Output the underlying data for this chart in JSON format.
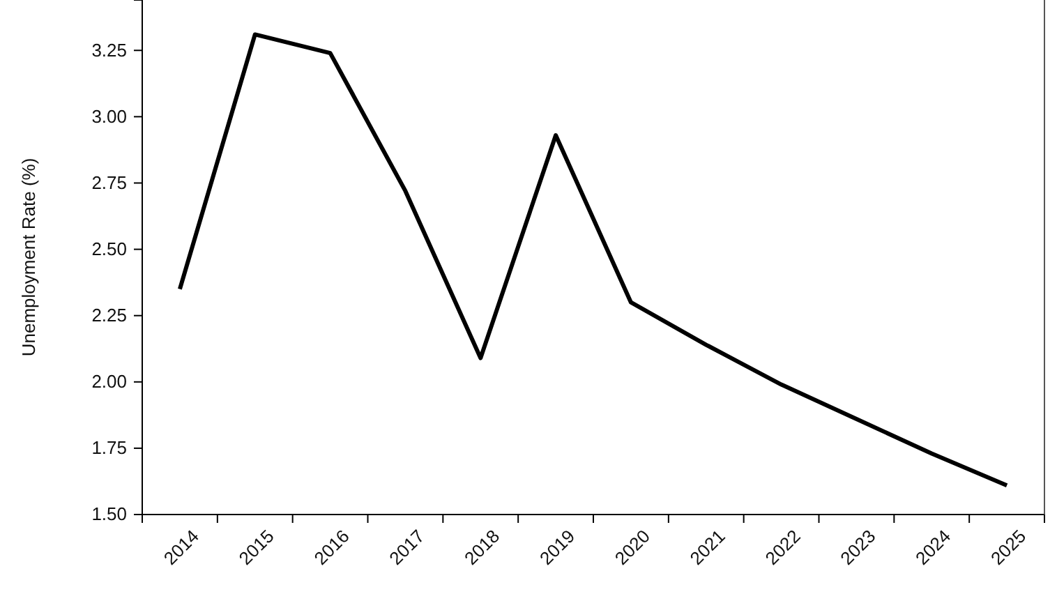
{
  "chart_data": {
    "type": "line",
    "ylabel": "Unemployment Rate (%)",
    "categories": [
      "2014",
      "2015",
      "2016",
      "2017",
      "2018",
      "2019",
      "2020",
      "2021",
      "2022",
      "2023",
      "2024",
      "2025"
    ],
    "series": [
      {
        "color": "#000000",
        "values": [
          2.35,
          3.31,
          3.24,
          2.72,
          2.09,
          2.93,
          2.3,
          2.14,
          1.99,
          1.86,
          1.73,
          1.61
        ]
      }
    ],
    "ylim": [
      1.5,
      3.44
    ],
    "yticks": [
      {
        "value": 1.5,
        "label": "1.50"
      },
      {
        "value": 1.75,
        "label": "1.75"
      },
      {
        "value": 2,
        "label": "2.00"
      },
      {
        "value": 2.25,
        "label": "2.25"
      },
      {
        "value": 2.5,
        "label": "2.50"
      },
      {
        "value": 2.75,
        "label": "2.75"
      },
      {
        "value": 3,
        "label": "3.00"
      },
      {
        "value": 3.25,
        "label": "3.25"
      }
    ],
    "grid": false,
    "marker": "none",
    "line_style": "solid"
  }
}
